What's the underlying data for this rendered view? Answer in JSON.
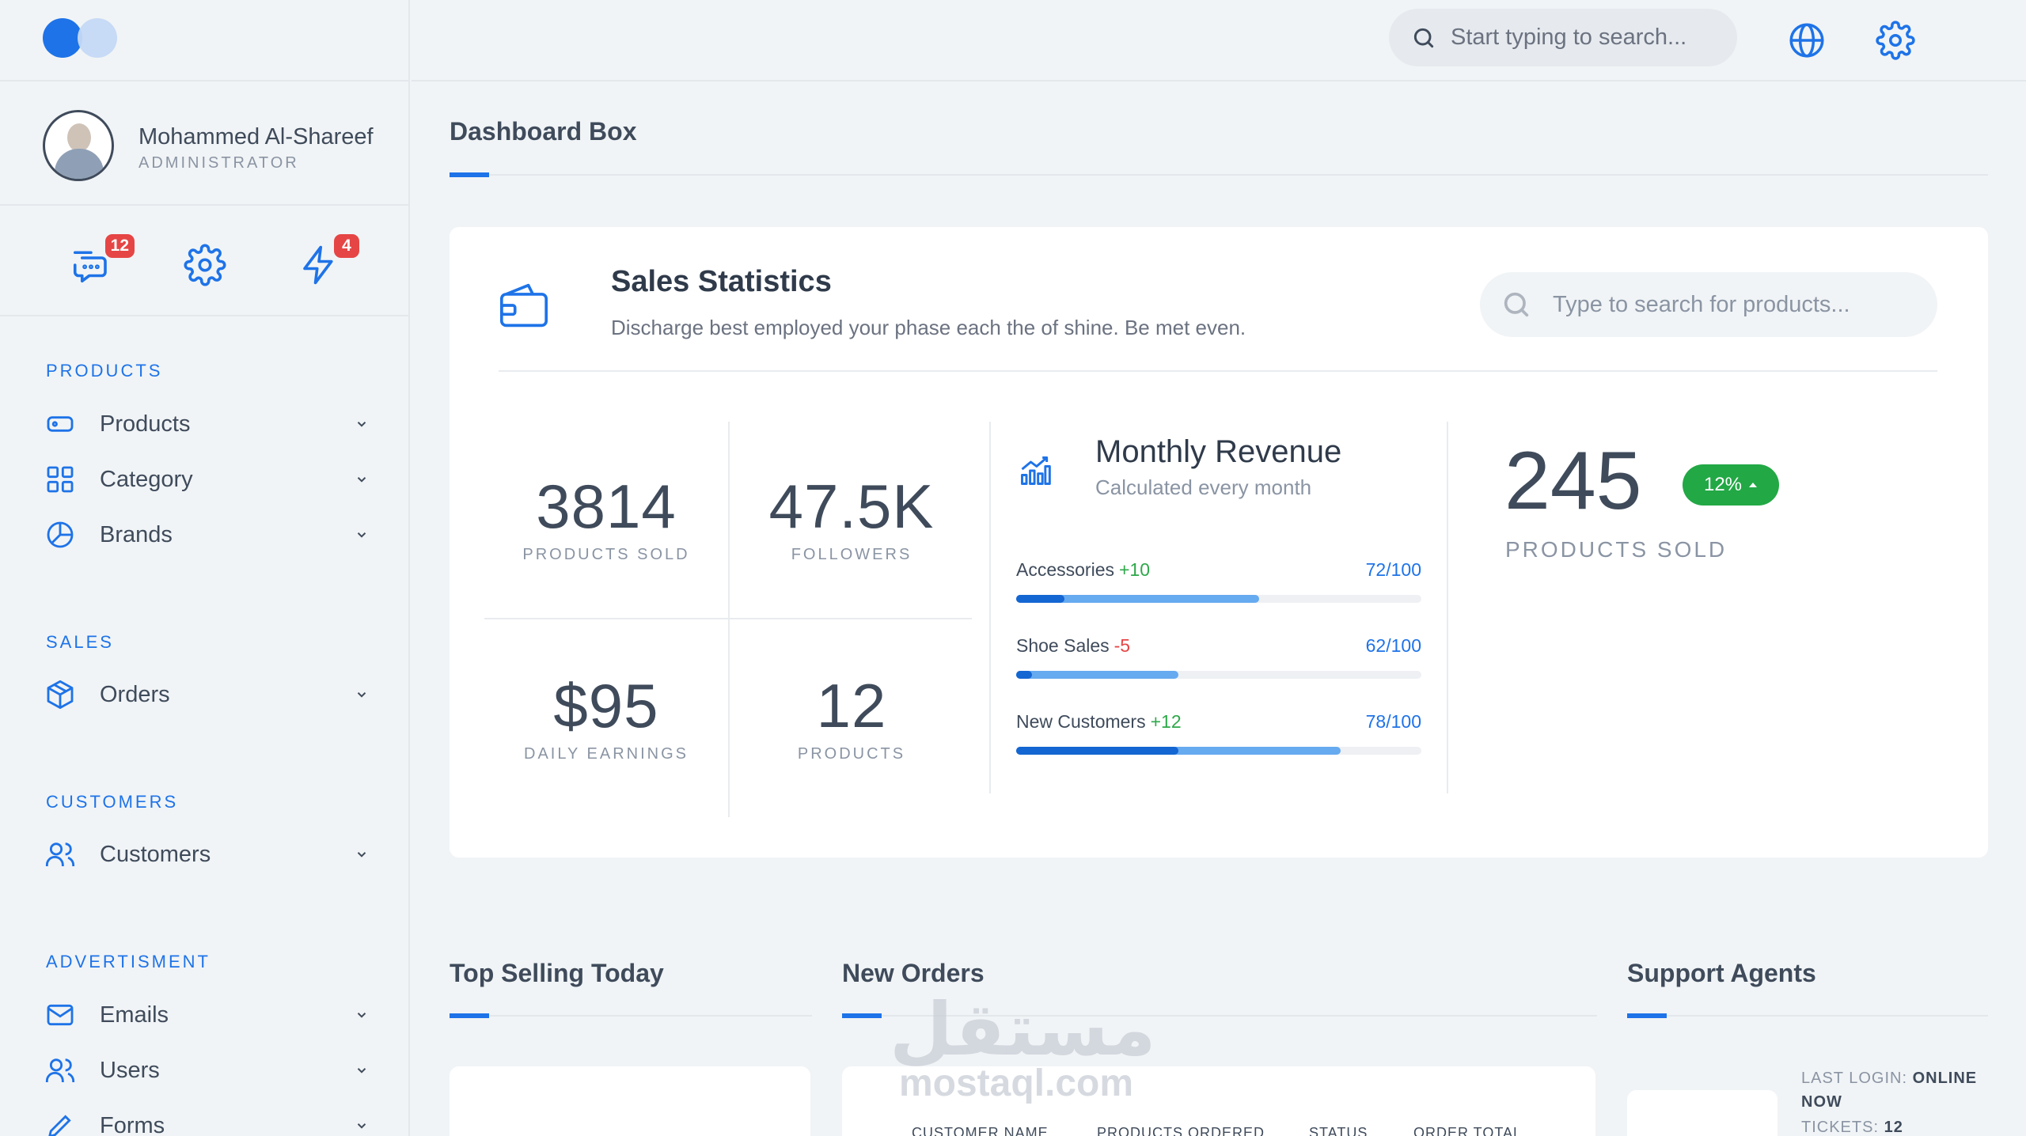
{
  "app": {
    "accent": "#1e73e8"
  },
  "topbar": {
    "search_placeholder": "Start typing to search...",
    "icons": [
      "search-icon",
      "globe-icon",
      "gear-icon"
    ]
  },
  "profile": {
    "name": "Mohammed Al-Shareef",
    "role": "ADMINISTRATOR"
  },
  "quick_actions": {
    "messages_badge": "12",
    "alerts_badge": "4"
  },
  "nav": {
    "products_section": "PRODUCTS",
    "products": "Products",
    "category": "Category",
    "brands": "Brands",
    "sales_section": "SALES",
    "orders": "Orders",
    "customers_section": "CUSTOMERS",
    "customers": "Customers",
    "ads_section": "ADVERTISMENT",
    "emails": "Emails",
    "users": "Users",
    "forms": "Forms"
  },
  "page": {
    "title": "Dashboard Box"
  },
  "sales": {
    "title": "Sales Statistics",
    "subtitle": "Discharge best employed your phase each the of shine. Be met even.",
    "search_placeholder": "Type to search for products...",
    "stats": [
      {
        "value": "3814",
        "label": "PRODUCTS SOLD"
      },
      {
        "value": "47.5K",
        "label": "FOLLOWERS"
      },
      {
        "value": "$95",
        "label": "DAILY EARNINGS"
      },
      {
        "value": "12",
        "label": "PRODUCTS"
      }
    ],
    "revenue": {
      "title": "Monthly Revenue",
      "subtitle": "Calculated every month",
      "items": [
        {
          "name": "Accessories",
          "delta": "+10",
          "score": "72/100",
          "dark": 0.12,
          "light": 0.6
        },
        {
          "name": "Shoe Sales",
          "delta": "-5",
          "score": "62/100",
          "dark": 0.04,
          "light": 0.4
        },
        {
          "name": "New Customers",
          "delta": "+12",
          "score": "78/100",
          "dark": 0.4,
          "light": 0.8
        }
      ]
    },
    "highlight": {
      "value": "245",
      "pill": "12%",
      "label": "PRODUCTS SOLD"
    }
  },
  "sections": {
    "top_selling": "Top Selling Today",
    "new_orders": "New Orders",
    "support": "Support Agents",
    "order_columns": [
      "CUSTOMER NAME",
      "PRODUCTS ORDERED",
      "STATUS",
      "ORDER TOTAL"
    ],
    "agent": {
      "last_login_label": "LAST LOGIN:",
      "last_login_value_1": "ONLINE",
      "last_login_value_2": "NOW",
      "tickets_label": "TICKETS:",
      "tickets_value": "12"
    }
  },
  "watermark": {
    "arabic": "مستقل",
    "latin": "mostaql.com"
  }
}
